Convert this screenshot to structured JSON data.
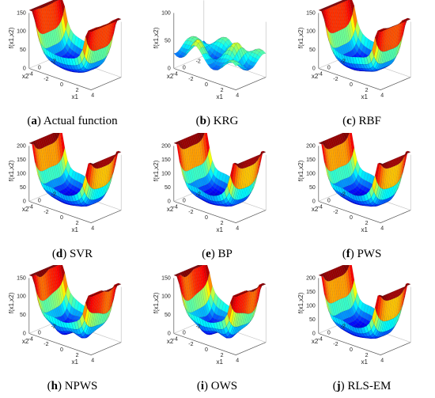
{
  "figure": {
    "panels": [
      {
        "id": "a",
        "letter": "a",
        "title": "Actual function",
        "model": "actual",
        "z_ticks": [
          "0",
          "50",
          "100",
          "150"
        ]
      },
      {
        "id": "b",
        "letter": "b",
        "title": "KRG",
        "model": "krg",
        "z_ticks": [
          "0",
          "50",
          "100"
        ]
      },
      {
        "id": "c",
        "letter": "c",
        "title": "RBF",
        "model": "rbf",
        "z_ticks": [
          "0",
          "50",
          "100",
          "150"
        ]
      },
      {
        "id": "d",
        "letter": "d",
        "title": "SVR",
        "model": "svr",
        "z_ticks": [
          "0",
          "50",
          "100",
          "150",
          "200"
        ]
      },
      {
        "id": "e",
        "letter": "e",
        "title": "BP",
        "model": "bp",
        "z_ticks": [
          "0",
          "50",
          "100",
          "150",
          "200"
        ]
      },
      {
        "id": "f",
        "letter": "f",
        "title": "PWS",
        "model": "pws",
        "z_ticks": [
          "0",
          "50",
          "100",
          "150",
          "200"
        ]
      },
      {
        "id": "h",
        "letter": "h",
        "title": "NPWS",
        "model": "npws",
        "z_ticks": [
          "0",
          "50",
          "100",
          "150"
        ]
      },
      {
        "id": "i",
        "letter": "i",
        "title": "OWS",
        "model": "ows",
        "z_ticks": [
          "0",
          "50",
          "100",
          "150"
        ]
      },
      {
        "id": "j",
        "letter": "j",
        "title": "RLS-EM",
        "model": "rlsem",
        "z_ticks": [
          "0",
          "50",
          "100",
          "150",
          "200"
        ]
      }
    ],
    "axis_labels": {
      "z": "f(x1,x2)",
      "x1": "x1",
      "x2": "x2"
    },
    "x1_ticks": [
      "-4",
      "-2",
      "0",
      "2",
      "4"
    ],
    "x2_ticks": [
      "-2",
      "0"
    ],
    "colormap": [
      "#00008f",
      "#0000ff",
      "#0080ff",
      "#00ffff",
      "#80ff80",
      "#ffff00",
      "#ff8000",
      "#ff0000",
      "#800000"
    ]
  },
  "chart_data": [
    {
      "type": "surface3d",
      "panel": "a",
      "title": "Actual function",
      "zlabel": "f(x1,x2)",
      "xlabel": "x1",
      "ylabel": "x2",
      "x1_range": [
        -4,
        4
      ],
      "x2_range": [
        -2,
        2
      ],
      "zlim": [
        0,
        150
      ]
    },
    {
      "type": "surface3d",
      "panel": "b",
      "title": "KRG",
      "zlabel": "f(x1,x2)",
      "xlabel": "x1",
      "ylabel": "x2",
      "x1_range": [
        -4,
        4
      ],
      "x2_range": [
        -2,
        2
      ],
      "zlim": [
        0,
        100
      ]
    },
    {
      "type": "surface3d",
      "panel": "c",
      "title": "RBF",
      "zlabel": "f(x1,x2)",
      "xlabel": "x1",
      "ylabel": "x2",
      "x1_range": [
        -4,
        4
      ],
      "x2_range": [
        -2,
        2
      ],
      "zlim": [
        0,
        150
      ]
    },
    {
      "type": "surface3d",
      "panel": "d",
      "title": "SVR",
      "zlabel": "f(x1,x2)",
      "xlabel": "x1",
      "ylabel": "x2",
      "x1_range": [
        -4,
        4
      ],
      "x2_range": [
        -2,
        2
      ],
      "zlim": [
        0,
        200
      ]
    },
    {
      "type": "surface3d",
      "panel": "e",
      "title": "BP",
      "zlabel": "f(x1,x2)",
      "xlabel": "x1",
      "ylabel": "x2",
      "x1_range": [
        -4,
        4
      ],
      "x2_range": [
        -2,
        2
      ],
      "zlim": [
        0,
        200
      ]
    },
    {
      "type": "surface3d",
      "panel": "f",
      "title": "PWS",
      "zlabel": "f(x1,x2)",
      "xlabel": "x1",
      "ylabel": "x2",
      "x1_range": [
        -4,
        4
      ],
      "x2_range": [
        -2,
        2
      ],
      "zlim": [
        0,
        200
      ]
    },
    {
      "type": "surface3d",
      "panel": "h",
      "title": "NPWS",
      "zlabel": "f(x1,x2)",
      "xlabel": "x1",
      "ylabel": "x2",
      "x1_range": [
        -4,
        4
      ],
      "x2_range": [
        -2,
        2
      ],
      "zlim": [
        0,
        150
      ]
    },
    {
      "type": "surface3d",
      "panel": "i",
      "title": "OWS",
      "zlabel": "f(x1,x2)",
      "xlabel": "x1",
      "ylabel": "x2",
      "x1_range": [
        -4,
        4
      ],
      "x2_range": [
        -2,
        2
      ],
      "zlim": [
        0,
        150
      ]
    },
    {
      "type": "surface3d",
      "panel": "j",
      "title": "RLS-EM",
      "zlabel": "f(x1,x2)",
      "xlabel": "x1",
      "ylabel": "x2",
      "x1_range": [
        -4,
        4
      ],
      "x2_range": [
        -2,
        2
      ],
      "zlim": [
        0,
        200
      ]
    }
  ]
}
